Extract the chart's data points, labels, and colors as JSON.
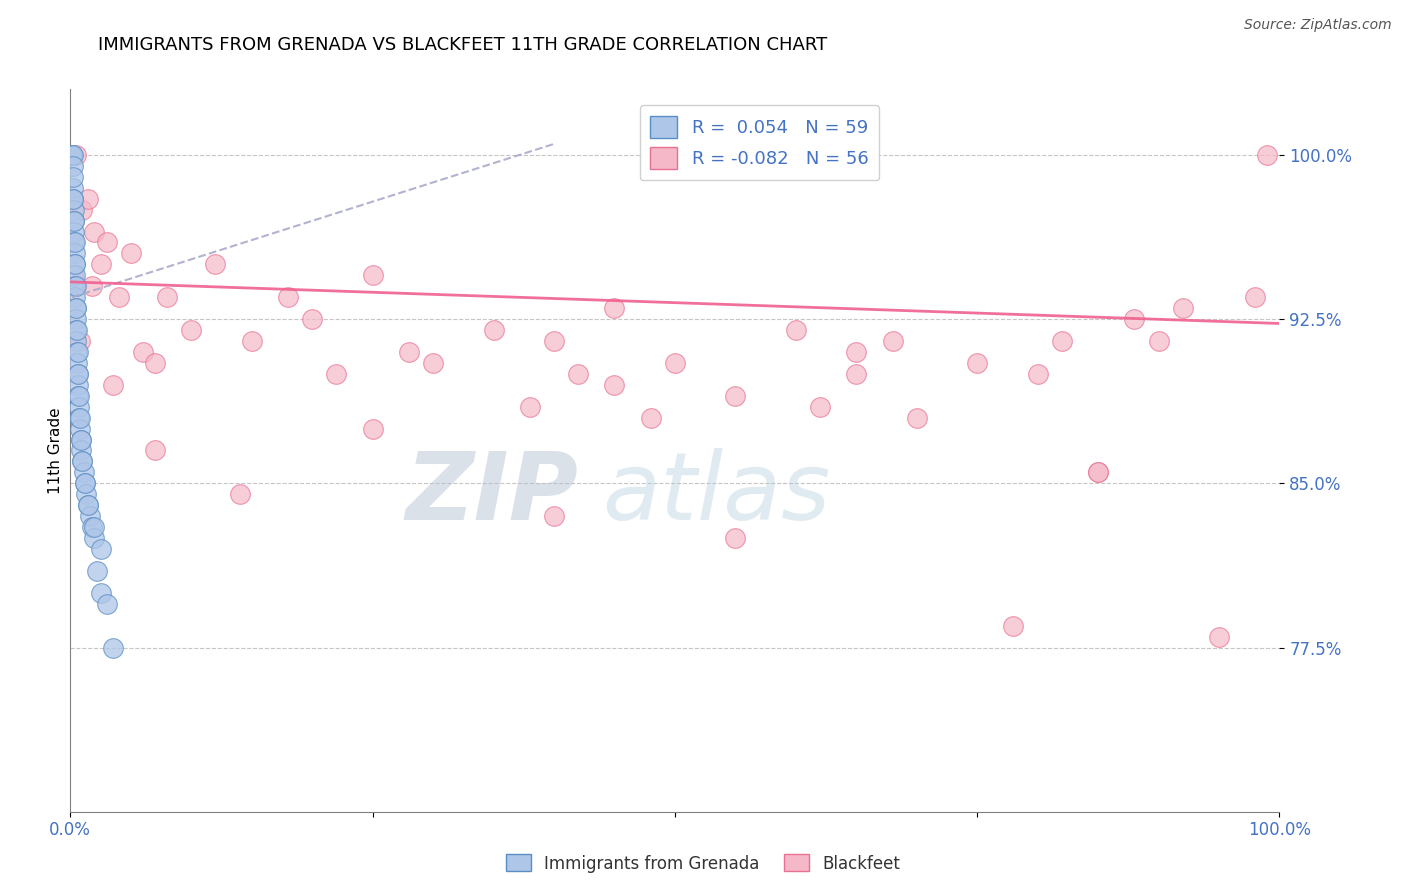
{
  "title": "IMMIGRANTS FROM GRENADA VS BLACKFEET 11TH GRADE CORRELATION CHART",
  "source_text": "Source: ZipAtlas.com",
  "ylabel": "11th Grade",
  "x_min": 0.0,
  "x_max": 100.0,
  "y_min": 70.0,
  "y_max": 103.0,
  "y_ticks": [
    77.5,
    85.0,
    92.5,
    100.0
  ],
  "y_tick_labels": [
    "77.5%",
    "85.0%",
    "92.5%",
    "100.0%"
  ],
  "x_ticks": [
    0,
    25,
    50,
    75,
    100
  ],
  "x_tick_labels": [
    "0.0%",
    "",
    "",
    "",
    "100.0%"
  ],
  "blue_R": 0.054,
  "blue_N": 59,
  "pink_R": -0.082,
  "pink_N": 56,
  "legend_blue_label": "R =  0.054   N = 59",
  "legend_pink_label": "R = -0.082   N = 56",
  "blue_color": "#aec6e8",
  "pink_color": "#f5b8c8",
  "blue_edge_color": "#5b8ec4",
  "pink_edge_color": "#e87090",
  "blue_line_color": "#aaaacc",
  "pink_line_color": "#f06090",
  "watermark_zip": "ZIP",
  "watermark_atlas": "atlas",
  "background_color": "#ffffff",
  "blue_scatter_x": [
    0.15,
    0.18,
    0.2,
    0.2,
    0.22,
    0.25,
    0.28,
    0.3,
    0.3,
    0.32,
    0.35,
    0.38,
    0.4,
    0.4,
    0.42,
    0.45,
    0.48,
    0.5,
    0.5,
    0.52,
    0.55,
    0.6,
    0.62,
    0.65,
    0.7,
    0.75,
    0.8,
    0.85,
    0.9,
    1.0,
    1.1,
    1.2,
    1.3,
    1.5,
    1.6,
    1.8,
    2.0,
    2.2,
    2.5,
    3.0,
    0.2,
    0.25,
    0.3,
    0.35,
    0.4,
    0.45,
    0.5,
    0.55,
    0.6,
    0.65,
    0.7,
    0.8,
    0.9,
    1.0,
    1.2,
    1.5,
    2.0,
    2.5,
    3.5
  ],
  "blue_scatter_y": [
    100.0,
    100.0,
    100.0,
    99.5,
    98.5,
    98.0,
    97.5,
    97.0,
    96.5,
    96.0,
    95.5,
    95.0,
    94.5,
    94.0,
    93.5,
    93.0,
    92.5,
    92.0,
    91.5,
    91.0,
    90.5,
    90.0,
    89.5,
    89.0,
    88.5,
    88.0,
    87.5,
    87.0,
    86.5,
    86.0,
    85.5,
    85.0,
    84.5,
    84.0,
    83.5,
    83.0,
    82.5,
    81.0,
    80.0,
    79.5,
    99.0,
    98.0,
    97.0,
    96.0,
    95.0,
    94.0,
    93.0,
    92.0,
    91.0,
    90.0,
    89.0,
    88.0,
    87.0,
    86.0,
    85.0,
    84.0,
    83.0,
    82.0,
    77.5
  ],
  "pink_scatter_x": [
    0.2,
    0.5,
    1.0,
    1.5,
    2.0,
    2.5,
    3.0,
    4.0,
    5.0,
    6.0,
    7.0,
    8.0,
    10.0,
    12.0,
    15.0,
    18.0,
    20.0,
    22.0,
    25.0,
    28.0,
    30.0,
    35.0,
    38.0,
    40.0,
    42.0,
    45.0,
    48.0,
    50.0,
    55.0,
    60.0,
    62.0,
    65.0,
    68.0,
    70.0,
    75.0,
    78.0,
    80.0,
    82.0,
    85.0,
    88.0,
    90.0,
    92.0,
    95.0,
    98.0,
    99.0,
    0.8,
    1.8,
    3.5,
    7.0,
    14.0,
    25.0,
    45.0,
    65.0,
    85.0,
    40.0,
    55.0
  ],
  "pink_scatter_y": [
    94.5,
    100.0,
    97.5,
    98.0,
    96.5,
    95.0,
    96.0,
    93.5,
    95.5,
    91.0,
    90.5,
    93.5,
    92.0,
    95.0,
    91.5,
    93.5,
    92.5,
    90.0,
    94.5,
    91.0,
    90.5,
    92.0,
    88.5,
    91.5,
    90.0,
    93.0,
    88.0,
    90.5,
    89.0,
    92.0,
    88.5,
    90.0,
    91.5,
    88.0,
    90.5,
    78.5,
    90.0,
    91.5,
    85.5,
    92.5,
    91.5,
    93.0,
    78.0,
    93.5,
    100.0,
    91.5,
    94.0,
    89.5,
    86.5,
    84.5,
    87.5,
    89.5,
    91.0,
    85.5,
    83.5,
    82.5
  ],
  "pink_line_start_y": 94.2,
  "pink_line_end_y": 92.3,
  "blue_line_start_x": 0.15,
  "blue_line_start_y": 93.5,
  "blue_line_end_x": 40.0,
  "blue_line_end_y": 100.5
}
